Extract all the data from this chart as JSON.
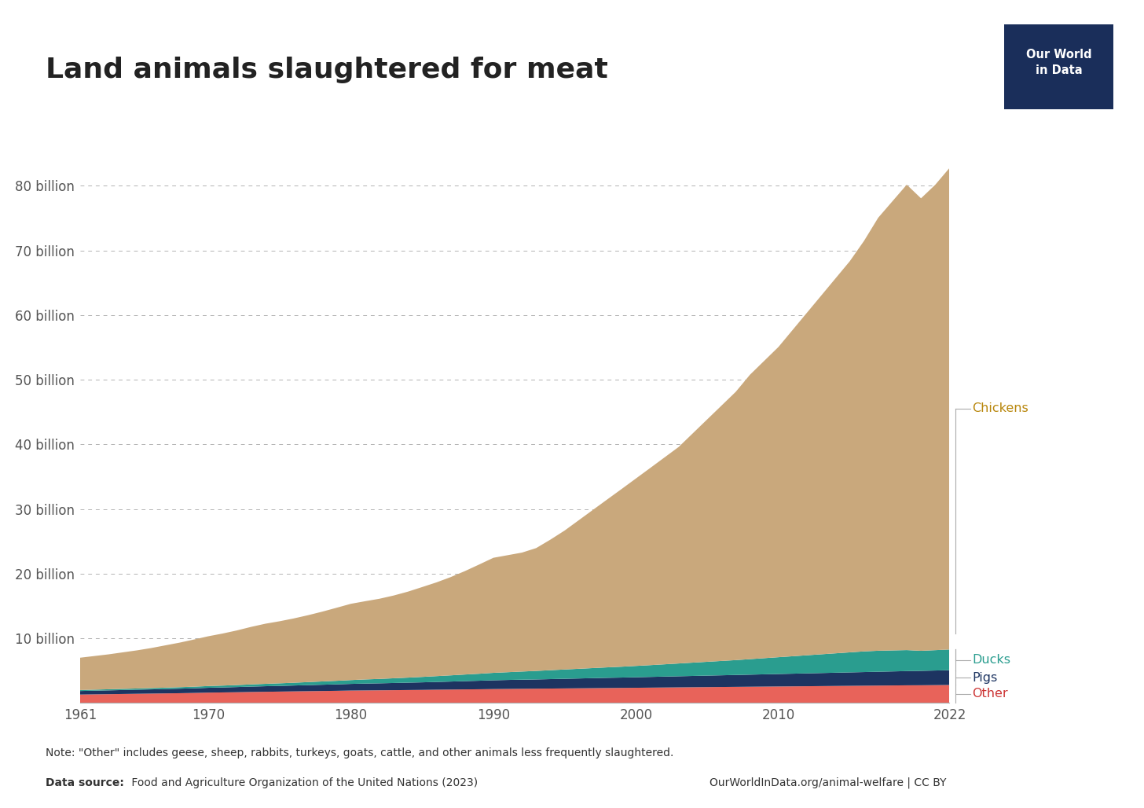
{
  "title": "Land animals slaughtered for meat",
  "note": "Note: \"Other\" includes geese, sheep, rabbits, turkeys, goats, cattle, and other animals less frequently slaughtered.",
  "source_bold": "Data source:",
  "source_rest": " Food and Agriculture Organization of the United Nations (2023)",
  "source_right": "OurWorldInData.org/animal-welfare | CC BY",
  "years": [
    1961,
    1962,
    1963,
    1964,
    1965,
    1966,
    1967,
    1968,
    1969,
    1970,
    1971,
    1972,
    1973,
    1974,
    1975,
    1976,
    1977,
    1978,
    1979,
    1980,
    1981,
    1982,
    1983,
    1984,
    1985,
    1986,
    1987,
    1988,
    1989,
    1990,
    1991,
    1992,
    1993,
    1994,
    1995,
    1996,
    1997,
    1998,
    1999,
    2000,
    2001,
    2002,
    2003,
    2004,
    2005,
    2006,
    2007,
    2008,
    2009,
    2010,
    2011,
    2012,
    2013,
    2014,
    2015,
    2016,
    2017,
    2018,
    2019,
    2020,
    2021,
    2022
  ],
  "other": [
    1.3,
    1.33,
    1.36,
    1.39,
    1.42,
    1.45,
    1.48,
    1.51,
    1.55,
    1.6,
    1.63,
    1.66,
    1.7,
    1.73,
    1.76,
    1.79,
    1.82,
    1.85,
    1.88,
    1.92,
    1.94,
    1.96,
    1.98,
    2.0,
    2.02,
    2.05,
    2.07,
    2.1,
    2.12,
    2.15,
    2.17,
    2.19,
    2.21,
    2.23,
    2.25,
    2.27,
    2.29,
    2.31,
    2.33,
    2.35,
    2.37,
    2.39,
    2.41,
    2.43,
    2.45,
    2.47,
    2.49,
    2.51,
    2.53,
    2.55,
    2.57,
    2.59,
    2.61,
    2.63,
    2.65,
    2.67,
    2.69,
    2.71,
    2.73,
    2.74,
    2.76,
    2.78
  ],
  "pigs": [
    0.55,
    0.57,
    0.59,
    0.61,
    0.63,
    0.65,
    0.67,
    0.7,
    0.72,
    0.75,
    0.77,
    0.8,
    0.83,
    0.86,
    0.88,
    0.91,
    0.94,
    0.97,
    1.0,
    1.03,
    1.06,
    1.08,
    1.11,
    1.14,
    1.17,
    1.2,
    1.24,
    1.28,
    1.32,
    1.36,
    1.39,
    1.41,
    1.43,
    1.46,
    1.49,
    1.52,
    1.55,
    1.58,
    1.6,
    1.63,
    1.66,
    1.69,
    1.72,
    1.75,
    1.78,
    1.81,
    1.84,
    1.87,
    1.9,
    1.93,
    1.96,
    1.99,
    2.02,
    2.05,
    2.08,
    2.11,
    2.14,
    2.17,
    2.2,
    2.23,
    2.26,
    2.29
  ],
  "ducks": [
    0.15,
    0.16,
    0.17,
    0.18,
    0.19,
    0.2,
    0.22,
    0.23,
    0.25,
    0.27,
    0.29,
    0.31,
    0.34,
    0.37,
    0.4,
    0.43,
    0.47,
    0.51,
    0.55,
    0.59,
    0.64,
    0.68,
    0.73,
    0.78,
    0.84,
    0.9,
    0.96,
    1.02,
    1.08,
    1.15,
    1.2,
    1.26,
    1.32,
    1.38,
    1.44,
    1.5,
    1.56,
    1.62,
    1.68,
    1.75,
    1.82,
    1.9,
    1.98,
    2.06,
    2.14,
    2.22,
    2.3,
    2.4,
    2.5,
    2.6,
    2.7,
    2.8,
    2.9,
    3.0,
    3.1,
    3.2,
    3.25,
    3.25,
    3.25,
    3.1,
    3.15,
    3.2
  ],
  "chickens": [
    5.0,
    5.2,
    5.4,
    5.65,
    5.9,
    6.2,
    6.55,
    6.9,
    7.3,
    7.7,
    8.05,
    8.45,
    8.9,
    9.3,
    9.6,
    9.95,
    10.35,
    10.8,
    11.3,
    11.8,
    12.1,
    12.4,
    12.8,
    13.3,
    13.9,
    14.5,
    15.2,
    16.0,
    16.9,
    17.8,
    18.1,
    18.4,
    19.0,
    20.2,
    21.5,
    23.0,
    24.5,
    26.0,
    27.5,
    29.0,
    30.5,
    32.0,
    33.5,
    35.5,
    37.5,
    39.5,
    41.5,
    44.0,
    46.0,
    48.0,
    50.5,
    53.0,
    55.5,
    58.0,
    60.5,
    63.5,
    67.0,
    69.5,
    72.0,
    70.0,
    72.0,
    74.5
  ],
  "colors": {
    "other": "#e8635a",
    "pigs": "#1d3461",
    "ducks": "#2a9d8f",
    "chickens": "#c9a87c"
  },
  "label_colors": {
    "chickens": "#b8860b",
    "ducks": "#2a9d8f",
    "pigs": "#1d3461",
    "other": "#cc3333"
  },
  "ylim_max": 90,
  "yticks_billion": [
    0,
    10,
    20,
    30,
    40,
    50,
    60,
    70,
    80
  ],
  "ytick_labels": [
    "",
    "10 billion",
    "20 billion",
    "30 billion",
    "40 billion",
    "50 billion",
    "60 billion",
    "70 billion",
    "80 billion"
  ],
  "xticks": [
    1961,
    1970,
    1980,
    1990,
    2000,
    2010,
    2022
  ],
  "background_color": "#ffffff",
  "logo_bg": "#1a2e5a",
  "logo_text": "Our World\nin Data"
}
